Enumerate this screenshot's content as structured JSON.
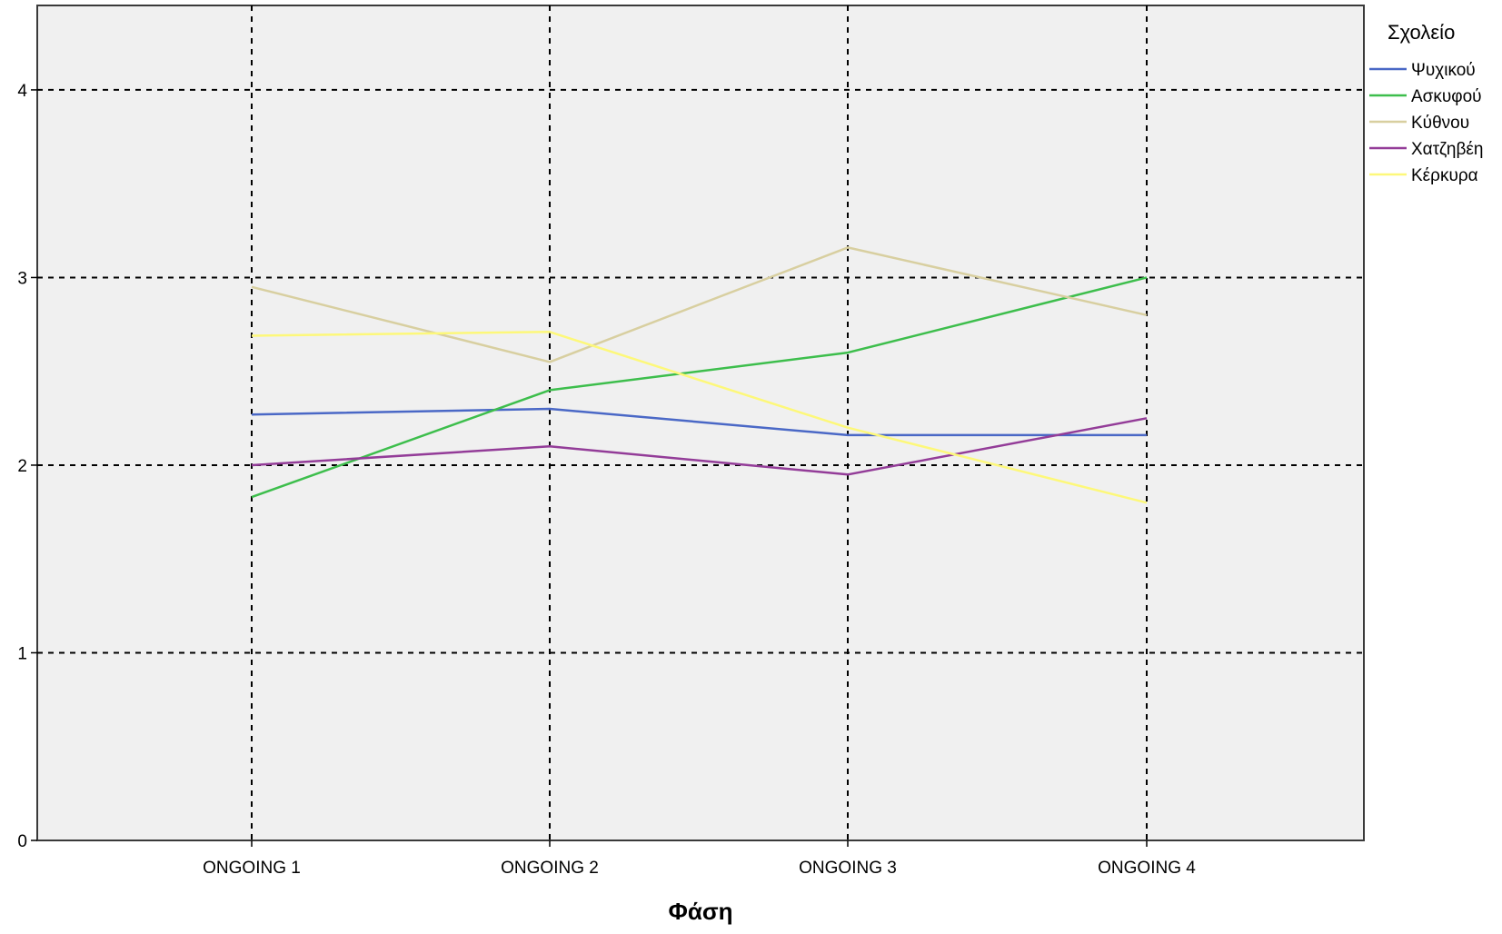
{
  "chart_data": {
    "type": "line",
    "title": "",
    "xlabel": "Φάση",
    "ylabel": "",
    "categories": [
      "ONGOING 1",
      "ONGOING 2",
      "ONGOING 3",
      "ONGOING 4"
    ],
    "ylim": [
      0,
      4.45
    ],
    "yticks": [
      "0",
      "1",
      "2",
      "3",
      "4"
    ],
    "grid": true,
    "legend": {
      "title": "Σχολείο",
      "placement": "top-right outside plot"
    },
    "series": [
      {
        "name": "Ψυχικού",
        "color": "#4A68C6",
        "values": [
          2.27,
          2.3,
          2.16,
          2.16
        ]
      },
      {
        "name": "Ασκυφού",
        "color": "#3DBE4C",
        "values": [
          1.83,
          2.4,
          2.6,
          3.0
        ]
      },
      {
        "name": "Κύθνου",
        "color": "#D8CFA0",
        "values": [
          2.95,
          2.55,
          3.16,
          2.8
        ]
      },
      {
        "name": "Χατζηβέη",
        "color": "#933C98",
        "values": [
          2.0,
          2.1,
          1.95,
          2.25
        ]
      },
      {
        "name": "Κέρκυρα",
        "color": "#FDF87A",
        "values": [
          2.69,
          2.71,
          2.2,
          1.8
        ]
      }
    ],
    "plot_background": "#F0F0F0"
  }
}
